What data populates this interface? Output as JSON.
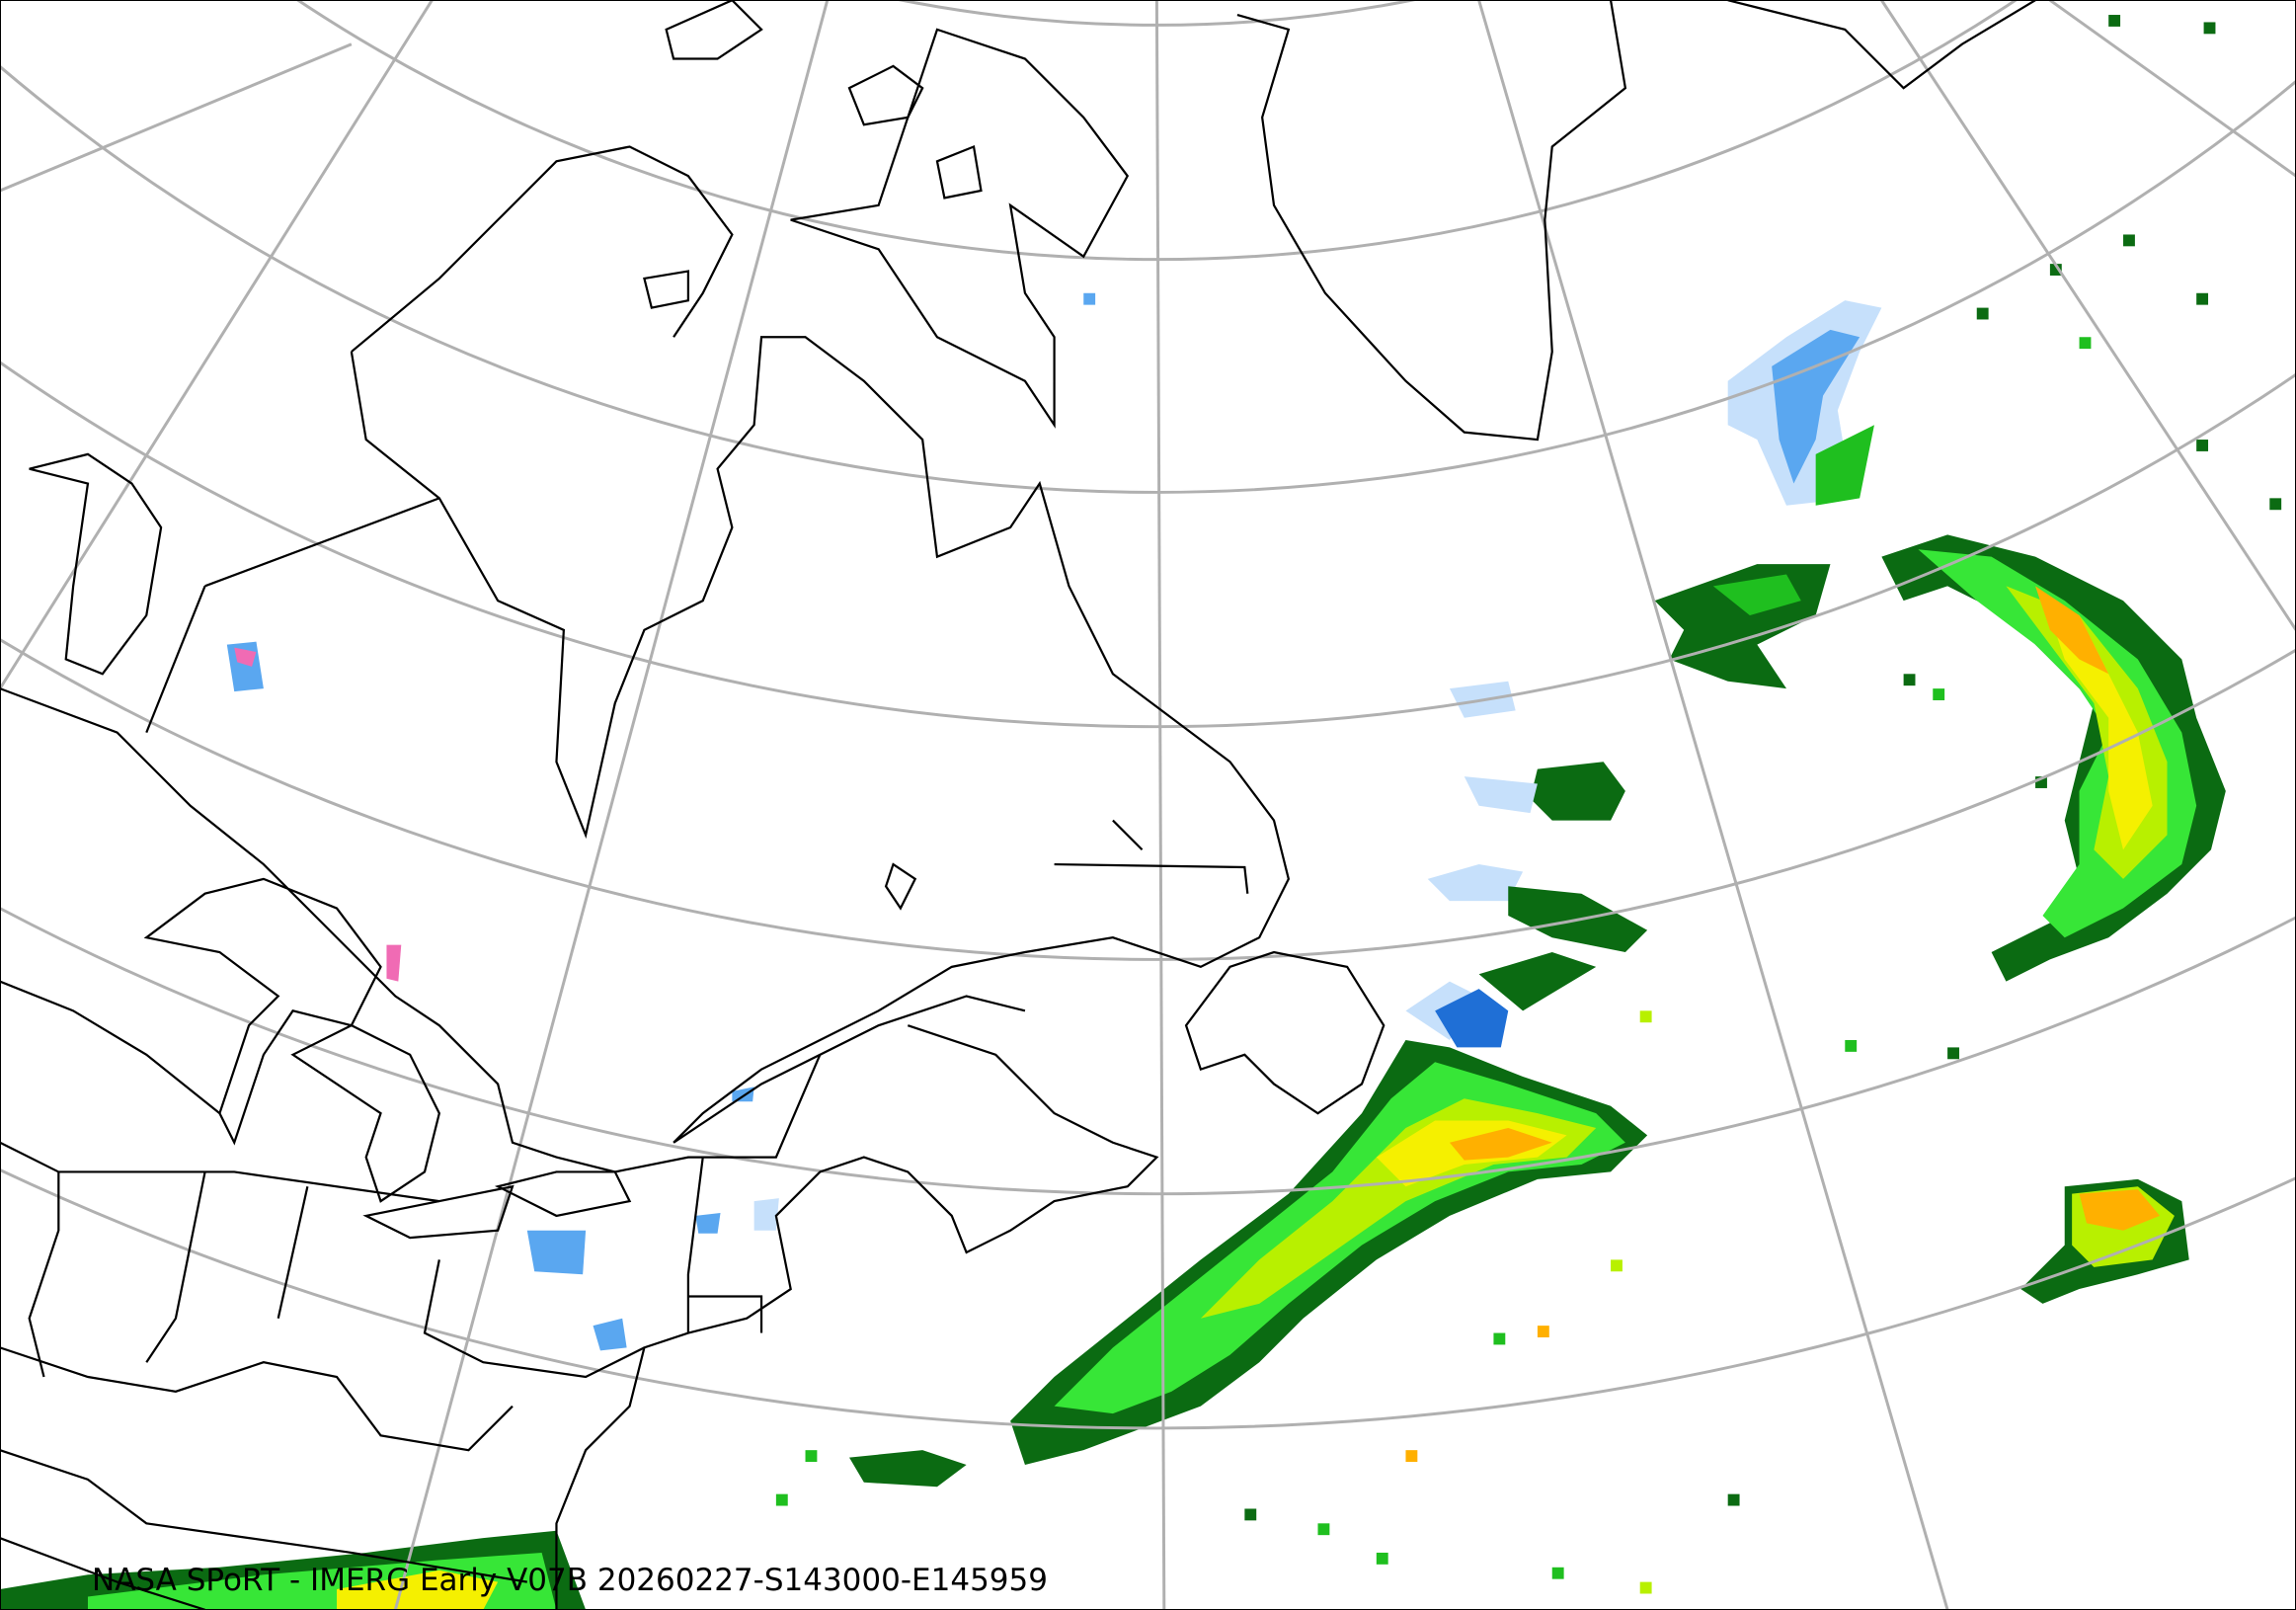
{
  "map": {
    "caption": "NASA SPoRT - IMERG Early V07B 20260227-S143000-E145959",
    "projection": "conic",
    "graticule_color": "#b0b0b0",
    "coastline_color": "#000000",
    "precip_colors": {
      "light_blue": "#c6e0fb",
      "blue": "#5aa7f0",
      "dark_blue": "#1f6fd6",
      "pink": "#f06bb4",
      "dark_green": "#0b6b12",
      "green": "#1fbf1f",
      "bright_green": "#37e637",
      "yellow_green": "#b8f000",
      "yellow": "#f5f000",
      "orange": "#ffb000",
      "red_orange": "#ff7000"
    }
  }
}
